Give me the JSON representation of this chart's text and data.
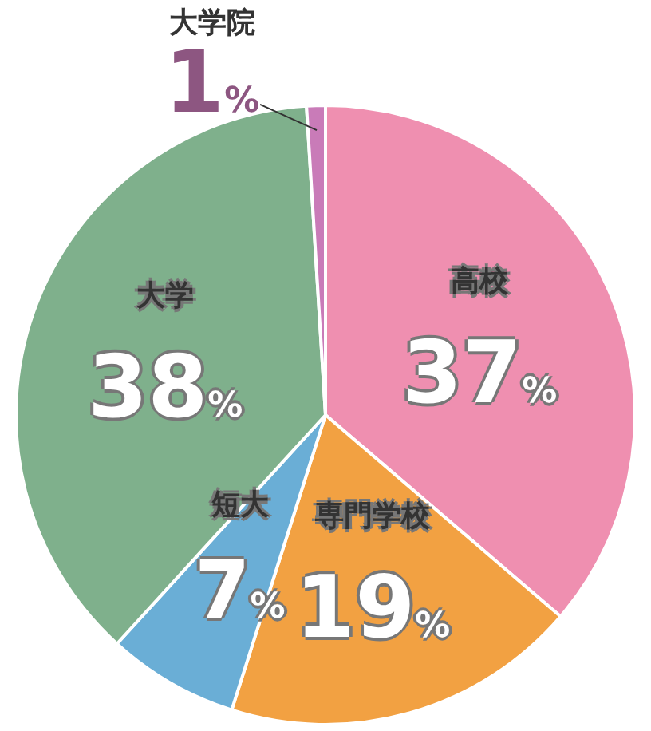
{
  "chart_data": {
    "type": "pie",
    "categories": [
      "高校",
      "専門学校",
      "短大",
      "大学",
      "大学院"
    ],
    "values": [
      37,
      19,
      7,
      38,
      1
    ],
    "colors": [
      "#ef8fb0",
      "#f2a142",
      "#6aaed6",
      "#7fb08c",
      "#c97bb8"
    ],
    "value_labels": [
      "37%",
      "19%",
      "7%",
      "38%",
      "1%"
    ],
    "legend": false
  }
}
